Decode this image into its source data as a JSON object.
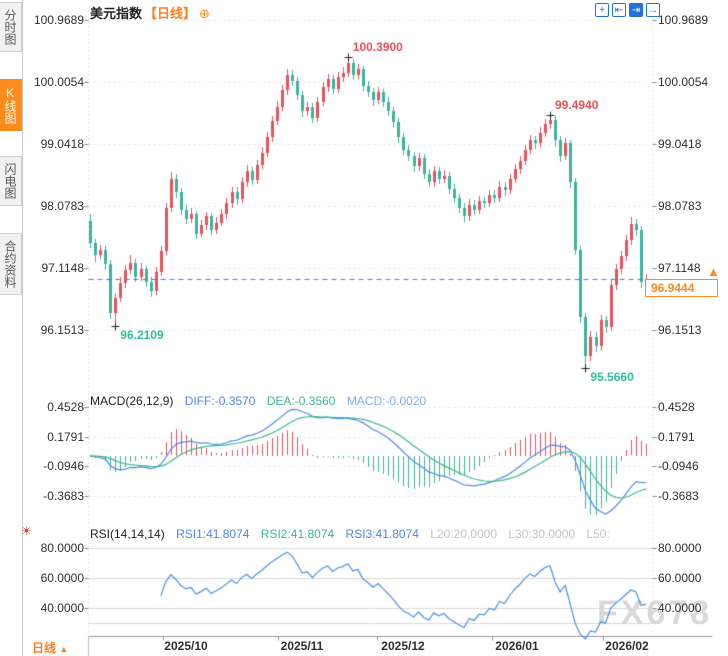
{
  "watermark": "FX678",
  "sidebar": {
    "tabs": [
      {
        "label": "分时图",
        "active": false
      },
      {
        "label": "K线图",
        "active": true
      },
      {
        "label": "闪电图",
        "active": false
      },
      {
        "label": "合约资料",
        "active": false
      }
    ]
  },
  "header": {
    "title": "美元指数",
    "period_tag": "【日线】",
    "plus_icon": "⊕"
  },
  "toolbar": {
    "icons": [
      {
        "name": "crosshair",
        "glyph": "+"
      },
      {
        "name": "zoom-axis-left",
        "glyph": "⇤"
      },
      {
        "name": "zoom-axis-right",
        "glyph": "⇥"
      },
      {
        "name": "exit-fullscreen",
        "glyph": "→"
      }
    ]
  },
  "hot_icon": "☀",
  "main_axis": {
    "labels": [
      "100.9689",
      "100.0054",
      "99.0418",
      "98.0783",
      "97.1148",
      "96.1513"
    ]
  },
  "macd_header": {
    "title": "MACD(26,12,9)",
    "diff": "DIFF:-0.3570",
    "dea": "DEA:-0.3560",
    "macd": "MACD:-0.0020"
  },
  "macd_axis": {
    "labels": [
      "0.4528",
      "0.1791",
      "-0.0946",
      "-0.3683"
    ]
  },
  "rsi_header": {
    "title": "RSI(14,14,14)",
    "rsi1": "RSI1:41.8074",
    "rsi2": "RSI2:41.8074",
    "rsi3": "RSI3:41.8074",
    "l20": "L20:20.0000",
    "l30": "L30:30.0000",
    "l50": "L50:"
  },
  "rsi_axis": {
    "labels": [
      "80.0000",
      "60.0000",
      "40.0000"
    ]
  },
  "xaxis": {
    "labels": [
      {
        "text": "2025/10",
        "center": 186,
        "tick": 163
      },
      {
        "text": "2025/11",
        "center": 302,
        "tick": 278
      },
      {
        "text": "2025/12",
        "center": 403,
        "tick": 377
      },
      {
        "text": "2026/01",
        "center": 517,
        "tick": 492
      },
      {
        "text": "2026/02",
        "center": 627,
        "tick": 603
      }
    ]
  },
  "bottom": {
    "period_text": "日线",
    "period_arrow": "▲"
  },
  "current_price": {
    "text": "96.9444",
    "value": 96.9444,
    "arrow": "▲"
  },
  "colors": {
    "up": "#e2555e",
    "down": "#3fb39a",
    "diff_line": "#4f8ae8",
    "dea_line": "#3cb890",
    "rsi_line": "#4a90e2",
    "price_line": "#3a87e0",
    "accent_orange": "#ff7f27",
    "ann_high": "#ef4e58",
    "ann_low": "#2fbf9f",
    "grid": "#e6e6e6",
    "rsi_grid": "#d9d9d9",
    "axis": "#999999",
    "tick": "#8a8a8a"
  },
  "chart_data": {
    "type": "candlestick",
    "title": "美元指数 日线",
    "ylim": [
      95.4,
      101.0
    ],
    "x_axis_ticks": [
      "2025/10",
      "2025/11",
      "2025/12",
      "2026/01",
      "2026/02"
    ],
    "annotations": [
      {
        "text": "100.3900",
        "day": 51,
        "price": 100.39,
        "kind": "high"
      },
      {
        "text": "99.4940",
        "day": 91,
        "price": 99.494,
        "kind": "high"
      },
      {
        "text": "96.2109",
        "day": 5,
        "price": 96.2109,
        "kind": "low"
      },
      {
        "text": "95.5660",
        "day": 98,
        "price": 95.566,
        "kind": "low"
      }
    ],
    "indicators": {
      "macd_params": [
        26,
        12,
        9
      ],
      "rsi_params": [
        14,
        14,
        14
      ]
    },
    "ohlc": [
      [
        97.85,
        97.95,
        97.42,
        97.5
      ],
      [
        97.5,
        97.56,
        97.21,
        97.32
      ],
      [
        97.32,
        97.48,
        97.26,
        97.4
      ],
      [
        97.4,
        97.46,
        97.08,
        97.18
      ],
      [
        97.18,
        97.24,
        96.33,
        96.42
      ],
      [
        96.42,
        96.72,
        96.2109,
        96.65
      ],
      [
        96.65,
        96.97,
        96.58,
        96.88
      ],
      [
        96.88,
        97.16,
        96.81,
        97.08
      ],
      [
        97.08,
        97.31,
        97.02,
        97.2
      ],
      [
        97.2,
        97.26,
        96.9,
        96.98
      ],
      [
        96.98,
        97.19,
        96.92,
        97.1
      ],
      [
        97.1,
        97.15,
        96.82,
        96.9
      ],
      [
        96.9,
        96.98,
        96.66,
        96.75
      ],
      [
        96.75,
        97.13,
        96.7,
        97.05
      ],
      [
        97.05,
        97.45,
        96.99,
        97.38
      ],
      [
        97.38,
        98.13,
        97.32,
        98.05
      ],
      [
        98.05,
        98.6,
        97.98,
        98.5
      ],
      [
        98.5,
        98.57,
        98.21,
        98.3
      ],
      [
        98.3,
        98.36,
        97.94,
        98.02
      ],
      [
        98.02,
        98.1,
        97.8,
        97.88
      ],
      [
        97.88,
        98.04,
        97.81,
        97.95
      ],
      [
        97.95,
        98.0,
        97.57,
        97.65
      ],
      [
        97.65,
        97.86,
        97.59,
        97.78
      ],
      [
        97.78,
        97.99,
        97.71,
        97.92
      ],
      [
        97.92,
        97.97,
        97.62,
        97.7
      ],
      [
        97.7,
        97.91,
        97.64,
        97.82
      ],
      [
        97.82,
        98.03,
        97.76,
        97.95
      ],
      [
        97.95,
        98.2,
        97.88,
        98.12
      ],
      [
        98.12,
        98.38,
        98.05,
        98.3
      ],
      [
        98.3,
        98.37,
        98.1,
        98.18
      ],
      [
        98.18,
        98.53,
        98.12,
        98.45
      ],
      [
        98.45,
        98.71,
        98.38,
        98.62
      ],
      [
        98.62,
        98.68,
        98.4,
        98.48
      ],
      [
        98.48,
        98.8,
        98.42,
        98.72
      ],
      [
        98.72,
        98.99,
        98.65,
        98.9
      ],
      [
        98.9,
        99.23,
        98.84,
        99.15
      ],
      [
        99.15,
        99.48,
        99.08,
        99.4
      ],
      [
        99.4,
        99.71,
        99.33,
        99.62
      ],
      [
        99.62,
        99.96,
        99.55,
        99.88
      ],
      [
        99.88,
        100.21,
        99.81,
        100.12
      ],
      [
        100.12,
        100.19,
        99.94,
        100.02
      ],
      [
        100.02,
        100.08,
        99.72,
        99.8
      ],
      [
        99.8,
        99.86,
        99.46,
        99.55
      ],
      [
        99.55,
        99.7,
        99.48,
        99.62
      ],
      [
        99.62,
        99.68,
        99.37,
        99.45
      ],
      [
        99.45,
        99.78,
        99.39,
        99.7
      ],
      [
        99.7,
        100.0,
        99.63,
        99.92
      ],
      [
        99.92,
        100.13,
        99.85,
        100.05
      ],
      [
        100.05,
        100.11,
        99.82,
        99.9
      ],
      [
        99.9,
        100.16,
        99.84,
        100.08
      ],
      [
        100.08,
        100.24,
        100.01,
        100.15
      ],
      [
        100.15,
        100.39,
        100.08,
        100.3
      ],
      [
        100.3,
        100.36,
        100.04,
        100.12
      ],
      [
        100.12,
        100.28,
        100.05,
        100.2
      ],
      [
        100.2,
        100.26,
        99.87,
        99.95
      ],
      [
        99.95,
        100.02,
        99.77,
        99.85
      ],
      [
        99.85,
        99.91,
        99.64,
        99.72
      ],
      [
        99.72,
        99.93,
        99.66,
        99.85
      ],
      [
        99.85,
        99.9,
        99.62,
        99.7
      ],
      [
        99.7,
        99.77,
        99.47,
        99.55
      ],
      [
        99.55,
        99.61,
        99.3,
        99.38
      ],
      [
        99.38,
        99.44,
        99.06,
        99.15
      ],
      [
        99.15,
        99.21,
        98.87,
        98.95
      ],
      [
        98.95,
        99.03,
        98.77,
        98.85
      ],
      [
        98.85,
        98.92,
        98.61,
        98.7
      ],
      [
        98.7,
        98.9,
        98.63,
        98.82
      ],
      [
        98.82,
        98.88,
        98.5,
        98.58
      ],
      [
        98.58,
        98.66,
        98.37,
        98.45
      ],
      [
        98.45,
        98.7,
        98.38,
        98.62
      ],
      [
        98.62,
        98.69,
        98.42,
        98.5
      ],
      [
        98.5,
        98.64,
        98.43,
        98.55
      ],
      [
        98.55,
        98.61,
        98.26,
        98.35
      ],
      [
        98.35,
        98.42,
        98.12,
        98.2
      ],
      [
        98.2,
        98.27,
        97.97,
        98.05
      ],
      [
        98.05,
        98.12,
        97.83,
        97.92
      ],
      [
        97.92,
        98.18,
        97.85,
        98.1
      ],
      [
        98.1,
        98.17,
        97.94,
        98.02
      ],
      [
        98.02,
        98.23,
        97.96,
        98.15
      ],
      [
        98.15,
        98.22,
        98.04,
        98.12
      ],
      [
        98.12,
        98.33,
        98.06,
        98.25
      ],
      [
        98.25,
        98.32,
        98.12,
        98.2
      ],
      [
        98.2,
        98.46,
        98.14,
        98.38
      ],
      [
        98.38,
        98.45,
        98.24,
        98.32
      ],
      [
        98.32,
        98.58,
        98.26,
        98.5
      ],
      [
        98.5,
        98.73,
        98.44,
        98.65
      ],
      [
        98.65,
        98.86,
        98.58,
        98.78
      ],
      [
        98.78,
        99.03,
        98.71,
        98.95
      ],
      [
        98.95,
        99.18,
        98.88,
        99.1
      ],
      [
        99.1,
        99.17,
        98.97,
        99.05
      ],
      [
        99.05,
        99.3,
        98.99,
        99.22
      ],
      [
        99.22,
        99.43,
        99.15,
        99.35
      ],
      [
        99.35,
        99.494,
        99.28,
        99.42
      ],
      [
        99.42,
        99.47,
        99.01,
        99.1
      ],
      [
        99.1,
        99.16,
        98.76,
        98.85
      ],
      [
        98.85,
        99.13,
        98.79,
        99.05
      ],
      [
        99.05,
        99.1,
        98.36,
        98.45
      ],
      [
        98.45,
        98.51,
        97.31,
        97.4
      ],
      [
        97.4,
        97.46,
        96.26,
        96.35
      ],
      [
        96.35,
        96.42,
        95.566,
        95.75
      ],
      [
        95.75,
        96.13,
        95.67,
        96.05
      ],
      [
        96.05,
        96.12,
        95.81,
        95.9
      ],
      [
        95.9,
        96.38,
        95.83,
        96.3
      ],
      [
        96.3,
        96.37,
        96.11,
        96.2
      ],
      [
        96.2,
        96.93,
        96.13,
        96.85
      ],
      [
        96.85,
        97.18,
        96.78,
        97.1
      ],
      [
        97.1,
        97.38,
        97.02,
        97.3
      ],
      [
        97.3,
        97.63,
        97.22,
        97.55
      ],
      [
        97.55,
        97.9,
        97.47,
        97.8
      ],
      [
        97.8,
        97.87,
        97.61,
        97.7
      ],
      [
        97.7,
        97.76,
        96.81,
        96.9
      ],
      [
        96.9,
        97.02,
        96.83,
        96.9444
      ]
    ]
  }
}
